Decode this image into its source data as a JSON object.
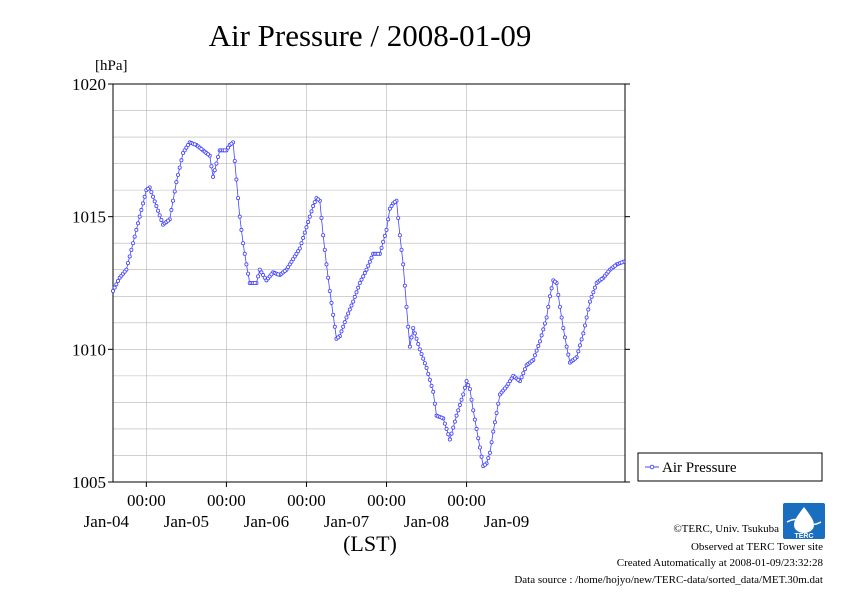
{
  "chart_data": {
    "type": "line",
    "title": "Air Pressure / 2008-01-09",
    "unit": "[hPa]",
    "xlabel": "(LST)",
    "ylim": [
      1005,
      1020
    ],
    "yticks": [
      "1020",
      "1015",
      "1010",
      "1005"
    ],
    "xlim": [
      "2008-01-03T14:00",
      "2008-01-09T23:30"
    ],
    "xtick_time_labels": [
      "00:00",
      "00:00",
      "00:00",
      "00:00",
      "00:00"
    ],
    "xtick_date_labels": [
      "Jan-04",
      "Jan-05",
      "Jan-06",
      "Jan-07",
      "Jan-08",
      "Jan-09"
    ],
    "grid": true,
    "legend_position": "right",
    "series": [
      {
        "name": "Air Pressure",
        "color": "#4444ff",
        "marker": "open-circle",
        "points": [
          [
            "2008-01-03T14:00",
            1012.2
          ],
          [
            "2008-01-03T16:00",
            1012.7
          ],
          [
            "2008-01-03T18:00",
            1013.0
          ],
          [
            "2008-01-03T20:00",
            1014.0
          ],
          [
            "2008-01-03T22:00",
            1015.0
          ],
          [
            "2008-01-04T00:00",
            1016.0
          ],
          [
            "2008-01-04T01:00",
            1016.1
          ],
          [
            "2008-01-04T03:00",
            1015.4
          ],
          [
            "2008-01-04T05:00",
            1014.7
          ],
          [
            "2008-01-04T07:00",
            1014.9
          ],
          [
            "2008-01-04T09:00",
            1016.3
          ],
          [
            "2008-01-04T11:00",
            1017.4
          ],
          [
            "2008-01-04T13:00",
            1017.8
          ],
          [
            "2008-01-04T15:00",
            1017.7
          ],
          [
            "2008-01-04T17:00",
            1017.5
          ],
          [
            "2008-01-04T19:00",
            1017.3
          ],
          [
            "2008-01-04T20:00",
            1016.5
          ],
          [
            "2008-01-04T21:00",
            1017.0
          ],
          [
            "2008-01-04T22:00",
            1017.5
          ],
          [
            "2008-01-05T00:00",
            1017.5
          ],
          [
            "2008-01-05T01:00",
            1017.7
          ],
          [
            "2008-01-05T02:00",
            1017.8
          ],
          [
            "2008-01-05T03:00",
            1016.4
          ],
          [
            "2008-01-05T04:00",
            1015.0
          ],
          [
            "2008-01-05T05:00",
            1014.0
          ],
          [
            "2008-01-05T06:00",
            1013.2
          ],
          [
            "2008-01-05T07:00",
            1012.5
          ],
          [
            "2008-01-05T09:00",
            1012.5
          ],
          [
            "2008-01-05T10:00",
            1013.0
          ],
          [
            "2008-01-05T12:00",
            1012.6
          ],
          [
            "2008-01-05T14:00",
            1012.9
          ],
          [
            "2008-01-05T16:00",
            1012.8
          ],
          [
            "2008-01-05T18:00",
            1013.0
          ],
          [
            "2008-01-05T20:00",
            1013.4
          ],
          [
            "2008-01-05T22:00",
            1013.8
          ],
          [
            "2008-01-06T00:00",
            1014.6
          ],
          [
            "2008-01-06T02:00",
            1015.4
          ],
          [
            "2008-01-06T03:00",
            1015.7
          ],
          [
            "2008-01-06T04:00",
            1015.6
          ],
          [
            "2008-01-06T05:00",
            1014.3
          ],
          [
            "2008-01-06T06:00",
            1013.2
          ],
          [
            "2008-01-06T07:00",
            1012.2
          ],
          [
            "2008-01-06T08:00",
            1011.3
          ],
          [
            "2008-01-06T09:00",
            1010.4
          ],
          [
            "2008-01-06T10:00",
            1010.5
          ],
          [
            "2008-01-06T12:00",
            1011.2
          ],
          [
            "2008-01-06T14:00",
            1011.8
          ],
          [
            "2008-01-06T16:00",
            1012.5
          ],
          [
            "2008-01-06T18:00",
            1013.0
          ],
          [
            "2008-01-06T20:00",
            1013.6
          ],
          [
            "2008-01-06T22:00",
            1013.6
          ],
          [
            "2008-01-07T00:00",
            1014.5
          ],
          [
            "2008-01-07T01:00",
            1015.3
          ],
          [
            "2008-01-07T02:00",
            1015.5
          ],
          [
            "2008-01-07T03:00",
            1015.6
          ],
          [
            "2008-01-07T04:00",
            1014.3
          ],
          [
            "2008-01-07T05:00",
            1013.2
          ],
          [
            "2008-01-07T06:00",
            1011.6
          ],
          [
            "2008-01-07T07:00",
            1010.1
          ],
          [
            "2008-01-07T08:00",
            1010.8
          ],
          [
            "2008-01-07T10:00",
            1010.0
          ],
          [
            "2008-01-07T12:00",
            1009.3
          ],
          [
            "2008-01-07T14:00",
            1008.4
          ],
          [
            "2008-01-07T15:00",
            1007.5
          ],
          [
            "2008-01-07T17:00",
            1007.4
          ],
          [
            "2008-01-07T19:00",
            1006.6
          ],
          [
            "2008-01-07T21:00",
            1007.5
          ],
          [
            "2008-01-07T23:00",
            1008.3
          ],
          [
            "2008-01-08T00:00",
            1008.8
          ],
          [
            "2008-01-08T01:00",
            1008.5
          ],
          [
            "2008-01-08T02:00",
            1007.7
          ],
          [
            "2008-01-08T03:00",
            1007.0
          ],
          [
            "2008-01-08T04:00",
            1006.3
          ],
          [
            "2008-01-08T05:00",
            1005.6
          ],
          [
            "2008-01-08T06:00",
            1005.7
          ],
          [
            "2008-01-08T07:00",
            1006.1
          ],
          [
            "2008-01-08T08:00",
            1006.9
          ],
          [
            "2008-01-08T09:00",
            1007.6
          ],
          [
            "2008-01-08T10:00",
            1008.3
          ],
          [
            "2008-01-08T12:00",
            1008.6
          ],
          [
            "2008-01-08T14:00",
            1009.0
          ],
          [
            "2008-01-08T16:00",
            1008.8
          ],
          [
            "2008-01-08T18:00",
            1009.4
          ],
          [
            "2008-01-08T20:00",
            1009.6
          ],
          [
            "2008-01-08T22:00",
            1010.3
          ],
          [
            "2008-01-09T00:00",
            1011.2
          ],
          [
            "2008-01-09T01:00",
            1012.0
          ],
          [
            "2008-01-09T02:00",
            1012.6
          ],
          [
            "2008-01-09T03:00",
            1012.5
          ],
          [
            "2008-01-09T04:00",
            1011.6
          ],
          [
            "2008-01-09T05:00",
            1010.8
          ],
          [
            "2008-01-09T06:00",
            1010.1
          ],
          [
            "2008-01-09T07:00",
            1009.5
          ],
          [
            "2008-01-09T09:00",
            1009.7
          ],
          [
            "2008-01-09T11:00",
            1010.6
          ],
          [
            "2008-01-09T13:00",
            1011.8
          ],
          [
            "2008-01-09T15:00",
            1012.5
          ],
          [
            "2008-01-09T17:00",
            1012.7
          ],
          [
            "2008-01-09T19:00",
            1013.0
          ],
          [
            "2008-01-09T21:00",
            1013.2
          ],
          [
            "2008-01-09T23:00",
            1013.3
          ]
        ]
      }
    ]
  },
  "credits": {
    "copyright": "©TERC, Univ. Tsukuba",
    "observed": "Observed at TERC Tower site",
    "created": "Created Automatically at 2008-01-09/23:32:28",
    "source": "Data source : /home/hojyo/new/TERC-data/sorted_data/MET.30m.dat",
    "logo_text": "TERC"
  }
}
